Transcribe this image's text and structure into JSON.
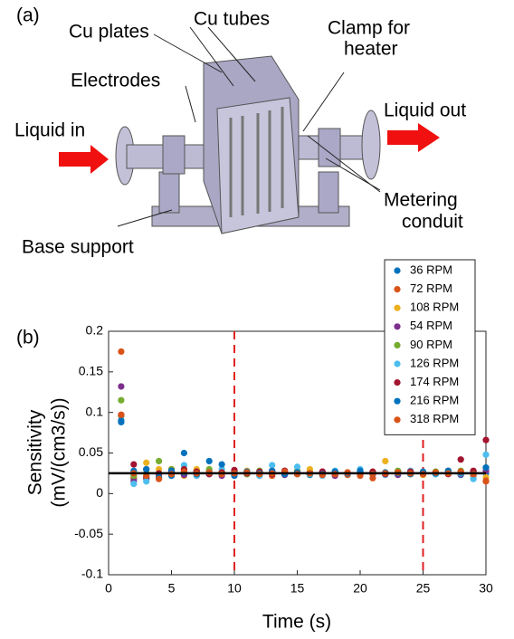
{
  "diagram": {
    "panel_label": "(a)",
    "labels": [
      "Cu plates",
      "Cu tubes",
      "Clamp for",
      "heater",
      "Electrodes",
      "Liquid in",
      "Liquid out",
      "Metering",
      "conduit",
      "Base support"
    ]
  },
  "chart_data": {
    "type": "scatter",
    "panel_label": "(b)",
    "xlabel": "Time (s)",
    "ylabel": [
      "Sensitivity",
      "(mV/(cm3/s))"
    ],
    "xlim": [
      0,
      30
    ],
    "ylim": [
      -0.1,
      0.2
    ],
    "xticks": [
      0,
      5,
      10,
      15,
      20,
      25,
      30
    ],
    "yticks": [
      -0.1,
      -0.05,
      0,
      0.05,
      0.1,
      0.15,
      0.2
    ],
    "legend": "upper right",
    "reference_line": 0.025,
    "vlines": [
      10,
      25
    ],
    "x": [
      1,
      2,
      3,
      4,
      5,
      6,
      7,
      8,
      9,
      10,
      11,
      12,
      13,
      14,
      15,
      16,
      17,
      18,
      19,
      20,
      21,
      22,
      23,
      24,
      25,
      26,
      27,
      28,
      29,
      30
    ],
    "series": [
      {
        "name": "36 RPM",
        "color": "#0072BD",
        "values": [
          0.088,
          0.018,
          0.02,
          0.025,
          0.022,
          0.05,
          0.028,
          0.024,
          0.026,
          0.028,
          0.025,
          0.022,
          0.027,
          0.025,
          0.024,
          0.023,
          0.026,
          0.025,
          0.024,
          0.026,
          0.025,
          0.024,
          0.027,
          0.025,
          0.026,
          0.024,
          0.025,
          0.023,
          0.026,
          0.025
        ]
      },
      {
        "name": "72 RPM",
        "color": "#D95319",
        "values": [
          0.175,
          0.02,
          0.018,
          0.022,
          0.03,
          0.025,
          0.022,
          0.028,
          0.024,
          0.026,
          0.027,
          0.025,
          0.022,
          0.028,
          0.025,
          0.027,
          0.024,
          0.026,
          0.023,
          0.025,
          0.019,
          0.026,
          0.027,
          0.024,
          0.025,
          0.026,
          0.028,
          0.024,
          0.022,
          0.015
        ]
      },
      {
        "name": "108 RPM",
        "color": "#EDB120",
        "values": [
          0.095,
          0.025,
          0.038,
          0.03,
          0.026,
          0.022,
          0.03,
          0.025,
          0.027,
          0.024,
          0.028,
          0.026,
          0.025,
          0.024,
          0.027,
          0.03,
          0.025,
          0.023,
          0.026,
          0.024,
          0.027,
          0.04,
          0.025,
          0.026,
          0.023,
          0.027,
          0.025,
          0.026,
          0.024,
          0.02
        ]
      },
      {
        "name": "54 RPM",
        "color": "#7E2F8E",
        "values": [
          0.132,
          0.015,
          0.02,
          0.024,
          0.027,
          0.023,
          0.026,
          0.025,
          0.022,
          0.027,
          0.024,
          0.026,
          0.028,
          0.023,
          0.026,
          0.025,
          0.027,
          0.022,
          0.025,
          0.028,
          0.024,
          0.025,
          0.023,
          0.027,
          0.024,
          0.025,
          0.026,
          0.024,
          0.027,
          0.028
        ]
      },
      {
        "name": "90 RPM",
        "color": "#77AC30",
        "values": [
          0.115,
          0.022,
          0.025,
          0.04,
          0.03,
          0.028,
          0.026,
          0.03,
          0.025,
          0.027,
          0.024,
          0.028,
          0.026,
          0.025,
          0.028,
          0.024,
          0.026,
          0.027,
          0.025,
          0.024,
          0.026,
          0.025,
          0.028,
          0.024,
          0.026,
          0.027,
          0.025,
          0.028,
          0.026,
          0.032
        ]
      },
      {
        "name": "126 RPM",
        "color": "#4DBEEE",
        "values": [
          0.096,
          0.012,
          0.015,
          0.02,
          0.025,
          0.035,
          0.022,
          0.026,
          0.03,
          0.025,
          0.027,
          0.022,
          0.035,
          0.026,
          0.033,
          0.024,
          0.022,
          0.028,
          0.025,
          0.03,
          0.026,
          0.023,
          0.025,
          0.028,
          0.026,
          0.024,
          0.027,
          0.025,
          0.018,
          0.048
        ]
      },
      {
        "name": "174 RPM",
        "color": "#A2142F",
        "values": [
          0.097,
          0.036,
          0.03,
          0.025,
          0.028,
          0.03,
          0.027,
          0.024,
          0.026,
          0.029,
          0.025,
          0.027,
          0.024,
          0.028,
          0.026,
          0.025,
          0.027,
          0.024,
          0.026,
          0.025,
          0.027,
          0.024,
          0.026,
          0.027,
          0.025,
          0.026,
          0.024,
          0.042,
          0.028,
          0.066
        ]
      },
      {
        "name": "216 RPM",
        "color": "#0072BD",
        "values": [
          0.09,
          0.028,
          0.03,
          0.02,
          0.028,
          0.026,
          0.024,
          0.04,
          0.036,
          0.022,
          0.027,
          0.025,
          0.028,
          0.024,
          0.026,
          0.025,
          0.024,
          0.027,
          0.025,
          0.028,
          0.024,
          0.026,
          0.025,
          0.024,
          0.027,
          0.025,
          0.028,
          0.026,
          0.024,
          0.032
        ]
      },
      {
        "name": "318 RPM",
        "color": "#D95319",
        "values": [
          0.097,
          0.025,
          0.022,
          0.018,
          0.024,
          0.027,
          0.025,
          0.026,
          0.024,
          0.025,
          0.026,
          0.024,
          0.025,
          0.027,
          0.024,
          0.025,
          0.023,
          0.024,
          0.026,
          0.022,
          0.024,
          0.025,
          0.026,
          0.025,
          0.024,
          0.026,
          0.025,
          0.027,
          0.024,
          0.016
        ]
      }
    ]
  }
}
